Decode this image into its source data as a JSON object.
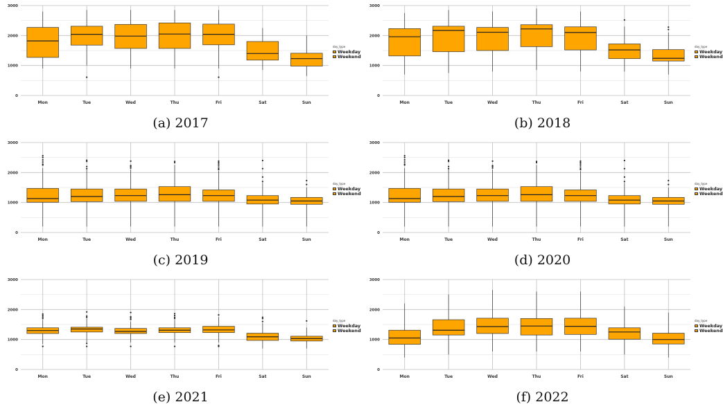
{
  "colors": {
    "box_fill": "#FFA500",
    "box_stroke": "#333333",
    "grid": "#bfbfbf"
  },
  "legend": {
    "title": "day_type",
    "entries": [
      "Weekday",
      "Weekend"
    ]
  },
  "chart_data": [
    {
      "type": "box",
      "caption": "(a) 2017",
      "categories": [
        "Mon",
        "Tue",
        "Wed",
        "Thu",
        "Fri",
        "Sat",
        "Sun"
      ],
      "ylim": [
        0,
        3000
      ],
      "yticks": [
        0,
        1000,
        2000,
        3000
      ],
      "grid": true,
      "boxes": [
        {
          "min": 900,
          "q1": 1270,
          "median": 1820,
          "q3": 2270,
          "max": 2800,
          "outliers": []
        },
        {
          "min": 1000,
          "q1": 1680,
          "median": 2040,
          "q3": 2310,
          "max": 2850,
          "outliers": [
            610
          ]
        },
        {
          "min": 900,
          "q1": 1570,
          "median": 1980,
          "q3": 2370,
          "max": 2850,
          "outliers": []
        },
        {
          "min": 900,
          "q1": 1570,
          "median": 2050,
          "q3": 2420,
          "max": 2850,
          "outliers": []
        },
        {
          "min": 900,
          "q1": 1690,
          "median": 2040,
          "q3": 2380,
          "max": 2850,
          "outliers": [
            610
          ]
        },
        {
          "min": 850,
          "q1": 1180,
          "median": 1400,
          "q3": 1800,
          "max": 2250,
          "outliers": []
        },
        {
          "min": 650,
          "q1": 980,
          "median": 1230,
          "q3": 1410,
          "max": 2000,
          "outliers": []
        }
      ]
    },
    {
      "type": "box",
      "caption": "(b) 2018",
      "categories": [
        "Mon",
        "Tue",
        "Wed",
        "Thu",
        "Fri",
        "Sat",
        "Sun"
      ],
      "ylim": [
        0,
        3000
      ],
      "yticks": [
        0,
        1000,
        2000,
        3000
      ],
      "grid": true,
      "boxes": [
        {
          "min": 700,
          "q1": 1320,
          "median": 1960,
          "q3": 2230,
          "max": 2750,
          "outliers": []
        },
        {
          "min": 750,
          "q1": 1460,
          "median": 2170,
          "q3": 2310,
          "max": 2850,
          "outliers": []
        },
        {
          "min": 800,
          "q1": 1500,
          "median": 2110,
          "q3": 2270,
          "max": 2800,
          "outliers": []
        },
        {
          "min": 850,
          "q1": 1630,
          "median": 2220,
          "q3": 2360,
          "max": 2900,
          "outliers": []
        },
        {
          "min": 800,
          "q1": 1520,
          "median": 2100,
          "q3": 2290,
          "max": 2800,
          "outliers": []
        },
        {
          "min": 800,
          "q1": 1230,
          "median": 1520,
          "q3": 1720,
          "max": 2300,
          "outliers": [
            2520
          ]
        },
        {
          "min": 700,
          "q1": 1150,
          "median": 1240,
          "q3": 1530,
          "max": 2100,
          "outliers": [
            2200,
            2280
          ]
        }
      ]
    },
    {
      "type": "box",
      "caption": "(c) 2019",
      "categories": [
        "Mon",
        "Tue",
        "Wed",
        "Thu",
        "Fri",
        "Sat",
        "Sun"
      ],
      "ylim": [
        0,
        3000
      ],
      "yticks": [
        0,
        1000,
        2000,
        3000
      ],
      "grid": true,
      "boxes": [
        {
          "min": 200,
          "q1": 1010,
          "median": 1130,
          "q3": 1470,
          "max": 2150,
          "outliers": [
            2250,
            2280,
            2350,
            2420,
            2500,
            2560
          ]
        },
        {
          "min": 200,
          "q1": 1030,
          "median": 1200,
          "q3": 1450,
          "max": 2100,
          "outliers": [
            2130,
            2200,
            2370,
            2410
          ]
        },
        {
          "min": 200,
          "q1": 1040,
          "median": 1230,
          "q3": 1450,
          "max": 2100,
          "outliers": [
            2150,
            2200,
            2230,
            2380
          ]
        },
        {
          "min": 200,
          "q1": 1040,
          "median": 1260,
          "q3": 1530,
          "max": 2250,
          "outliers": [
            2330,
            2370
          ]
        },
        {
          "min": 200,
          "q1": 1040,
          "median": 1230,
          "q3": 1420,
          "max": 2050,
          "outliers": [
            2100,
            2150,
            2220,
            2280,
            2330,
            2380
          ]
        },
        {
          "min": 200,
          "q1": 950,
          "median": 1080,
          "q3": 1230,
          "max": 1650,
          "outliers": [
            1700,
            1850,
            2130,
            2400
          ]
        },
        {
          "min": 200,
          "q1": 940,
          "median": 1050,
          "q3": 1170,
          "max": 1500,
          "outliers": [
            1600,
            1730
          ]
        }
      ]
    },
    {
      "type": "box",
      "caption": "(d) 2020",
      "categories": [
        "Mon",
        "Tue",
        "Wed",
        "Thu",
        "Fri",
        "Sat",
        "Sun"
      ],
      "ylim": [
        0,
        3000
      ],
      "yticks": [
        0,
        1000,
        2000,
        3000
      ],
      "grid": true,
      "boxes": [
        {
          "min": 200,
          "q1": 1010,
          "median": 1130,
          "q3": 1470,
          "max": 2150,
          "outliers": [
            2250,
            2280,
            2350,
            2420,
            2500,
            2560
          ]
        },
        {
          "min": 200,
          "q1": 1030,
          "median": 1200,
          "q3": 1450,
          "max": 2100,
          "outliers": [
            2130,
            2200,
            2370,
            2410
          ]
        },
        {
          "min": 200,
          "q1": 1040,
          "median": 1230,
          "q3": 1450,
          "max": 2100,
          "outliers": [
            2150,
            2200,
            2230,
            2380
          ]
        },
        {
          "min": 200,
          "q1": 1040,
          "median": 1260,
          "q3": 1530,
          "max": 2250,
          "outliers": [
            2330,
            2370
          ]
        },
        {
          "min": 200,
          "q1": 1040,
          "median": 1230,
          "q3": 1420,
          "max": 2050,
          "outliers": [
            2100,
            2150,
            2220,
            2280,
            2330,
            2380
          ]
        },
        {
          "min": 200,
          "q1": 950,
          "median": 1080,
          "q3": 1230,
          "max": 1650,
          "outliers": [
            1700,
            1850,
            2130,
            2400
          ]
        },
        {
          "min": 200,
          "q1": 940,
          "median": 1050,
          "q3": 1170,
          "max": 1500,
          "outliers": [
            1600,
            1730
          ]
        }
      ]
    },
    {
      "type": "box",
      "caption": "(e) 2021",
      "categories": [
        "Mon",
        "Tue",
        "Wed",
        "Thu",
        "Fri",
        "Sat",
        "Sun"
      ],
      "ylim": [
        0,
        3000
      ],
      "yticks": [
        0,
        1000,
        2000,
        3000
      ],
      "grid": true,
      "boxes": [
        {
          "min": 850,
          "q1": 1200,
          "median": 1300,
          "q3": 1390,
          "max": 1650,
          "outliers": [
            770,
            1700,
            1750,
            1800,
            1850
          ]
        },
        {
          "min": 900,
          "q1": 1250,
          "median": 1350,
          "q3": 1410,
          "max": 1700,
          "outliers": [
            770,
            870,
            1740,
            1780,
            1920
          ]
        },
        {
          "min": 900,
          "q1": 1200,
          "median": 1270,
          "q3": 1370,
          "max": 1600,
          "outliers": [
            770,
            1670,
            1720,
            1760,
            1900
          ]
        },
        {
          "min": 900,
          "q1": 1230,
          "median": 1310,
          "q3": 1390,
          "max": 1650,
          "outliers": [
            770,
            1700,
            1740,
            1800,
            1860
          ]
        },
        {
          "min": 900,
          "q1": 1230,
          "median": 1320,
          "q3": 1440,
          "max": 1750,
          "outliers": [
            770,
            800,
            1820
          ]
        },
        {
          "min": 700,
          "q1": 970,
          "median": 1090,
          "q3": 1210,
          "max": 1550,
          "outliers": [
            1600,
            1700,
            1740
          ]
        },
        {
          "min": 700,
          "q1": 950,
          "median": 1030,
          "q3": 1110,
          "max": 1400,
          "outliers": [
            1620
          ]
        }
      ]
    },
    {
      "type": "box",
      "caption": "(f) 2022",
      "categories": [
        "Mon",
        "Tue",
        "Wed",
        "Thu",
        "Fri",
        "Sat",
        "Sun"
      ],
      "ylim": [
        0,
        3000
      ],
      "yticks": [
        0,
        1000,
        2000,
        3000
      ],
      "grid": true,
      "boxes": [
        {
          "min": 400,
          "q1": 840,
          "median": 1050,
          "q3": 1310,
          "max": 2200,
          "outliers": []
        },
        {
          "min": 500,
          "q1": 1150,
          "median": 1310,
          "q3": 1660,
          "max": 2500,
          "outliers": []
        },
        {
          "min": 600,
          "q1": 1200,
          "median": 1430,
          "q3": 1710,
          "max": 2650,
          "outliers": []
        },
        {
          "min": 600,
          "q1": 1150,
          "median": 1450,
          "q3": 1700,
          "max": 2600,
          "outliers": []
        },
        {
          "min": 600,
          "q1": 1170,
          "median": 1440,
          "q3": 1710,
          "max": 2600,
          "outliers": []
        },
        {
          "min": 500,
          "q1": 1010,
          "median": 1250,
          "q3": 1390,
          "max": 2100,
          "outliers": []
        },
        {
          "min": 400,
          "q1": 850,
          "median": 1000,
          "q3": 1210,
          "max": 1900,
          "outliers": []
        }
      ]
    }
  ]
}
